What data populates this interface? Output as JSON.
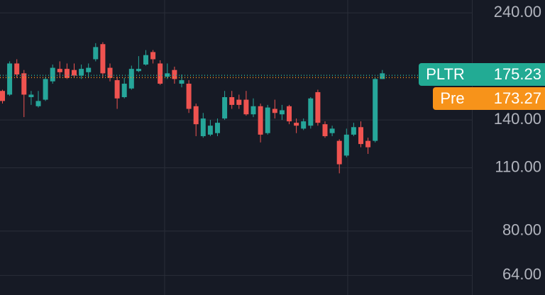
{
  "chart_data": {
    "type": "candlestick",
    "log_scale": true,
    "grid": true,
    "up_color": "#26a69a",
    "down_color": "#ef5350",
    "ylim": [
      58,
      256
    ],
    "yticks": [
      {
        "value": 240,
        "label": "240.00"
      },
      {
        "value": 140,
        "label": "140.00"
      },
      {
        "value": 110,
        "label": "110.00"
      },
      {
        "value": 80,
        "label": "80.00"
      },
      {
        "value": 64,
        "label": "64.00"
      }
    ],
    "open": [
      162,
      159,
      186,
      177,
      157,
      150,
      155,
      170,
      181,
      181,
      180,
      175,
      178,
      190,
      205,
      182,
      171,
      157,
      164,
      179,
      185,
      197,
      186,
      174,
      180,
      168,
      168,
      150,
      129,
      130,
      131,
      141,
      157,
      155,
      155,
      144,
      150,
      131,
      148,
      144,
      150,
      138,
      134,
      136,
      161,
      137,
      131,
      126,
      117,
      130,
      135,
      126,
      126,
      172
    ],
    "high": [
      163,
      188,
      190,
      180,
      162,
      162,
      174,
      185,
      188,
      186,
      186,
      185,
      186,
      206,
      207,
      186,
      174,
      173,
      184,
      193,
      199,
      199,
      189,
      186,
      183,
      176,
      171,
      152,
      145,
      140,
      141,
      162,
      162,
      159,
      162,
      156,
      152,
      151,
      155,
      151,
      151,
      141,
      141,
      157,
      163,
      139,
      136,
      127,
      134,
      138,
      139,
      128,
      173,
      180
    ],
    "low": [
      152,
      158,
      173,
      142,
      151,
      149,
      154,
      168,
      173,
      172,
      173,
      172,
      173,
      188,
      173,
      170,
      148,
      156,
      163,
      178,
      184,
      186,
      167,
      172,
      168,
      165,
      145,
      129,
      128,
      129,
      129,
      140,
      148,
      148,
      143,
      142,
      125,
      130,
      141,
      140,
      137,
      131,
      133,
      134,
      136,
      128,
      129,
      107,
      116,
      129,
      122,
      118,
      125,
      172
    ],
    "close": [
      154,
      186,
      176,
      159,
      159,
      154,
      172,
      182,
      178,
      173,
      175,
      181,
      182,
      202,
      177,
      173,
      156,
      168,
      181,
      181,
      194,
      190,
      168,
      177,
      172,
      171,
      148,
      137,
      141,
      136,
      138,
      157,
      151,
      151,
      144,
      150,
      130,
      149,
      145,
      147,
      139,
      136,
      139,
      156,
      138,
      129,
      134,
      112,
      130,
      135,
      124,
      122,
      172,
      177
    ],
    "last_price": {
      "label": "PLTR",
      "value": 175.23,
      "color": "#22ab94"
    },
    "pre_market": {
      "label": "Pre",
      "value": 173.27,
      "color": "#f7931a"
    }
  }
}
